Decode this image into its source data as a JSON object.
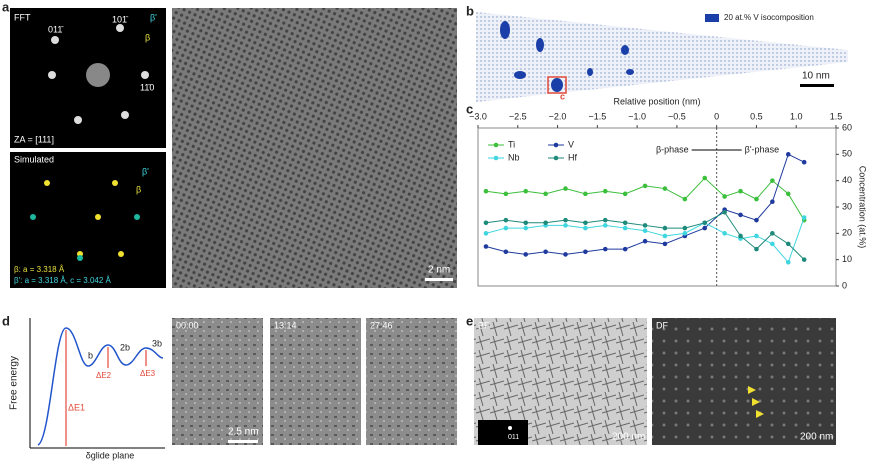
{
  "panel_labels": [
    "a",
    "b",
    "c",
    "d",
    "e"
  ],
  "panel_a": {
    "fft_label": "FFT",
    "spot_labels": [
      "101̄",
      "011̄",
      "11̄0"
    ],
    "beta": "β",
    "beta_prime": "β'",
    "zone_axis": "ZA = [111]",
    "simulated_label": "Simulated",
    "legend_beta": "β: a = 3.318 Å",
    "legend_beta_prime": "β': a = 3.318 Å, c = 3.042 Å",
    "scale_bar": "2 nm"
  },
  "panel_b": {
    "legend": "20 at.% V isocomposition",
    "scale_bar": "10 nm",
    "inset_label": "c"
  },
  "chart_data": {
    "type": "line",
    "xlabel": "Relative position (nm)",
    "ylabel": "Concentration (at.%)",
    "xlim": [
      -3.0,
      1.5
    ],
    "xticks": [
      {
        "value": -3.0,
        "label": "−3.0"
      },
      {
        "value": -2.5,
        "label": "−2.5"
      },
      {
        "value": -2.0,
        "label": "−2.0"
      },
      {
        "value": -1.5,
        "label": "−1.5"
      },
      {
        "value": -1.0,
        "label": "−1.0"
      },
      {
        "value": -0.5,
        "label": "−0.5"
      },
      0,
      0.5,
      {
        "value": 1.0,
        "label": "1.0"
      },
      1.5
    ],
    "ylim": [
      0,
      60
    ],
    "yticks": [
      0,
      10,
      20,
      30,
      40,
      50,
      60
    ],
    "x": [
      -2.9,
      -2.65,
      -2.4,
      -2.15,
      -1.9,
      -1.65,
      -1.4,
      -1.15,
      -0.9,
      -0.65,
      -0.4,
      -0.15,
      0.1,
      0.3,
      0.5,
      0.7,
      0.9,
      1.1
    ],
    "series": [
      {
        "name": "Ti",
        "color": "#3cbf3c",
        "values": [
          36,
          35,
          36,
          35,
          37,
          35,
          36,
          35,
          38,
          37,
          33,
          41,
          34,
          36,
          33,
          40,
          35,
          25
        ]
      },
      {
        "name": "V",
        "color": "#1f3a9e",
        "values": [
          15,
          13,
          12,
          13,
          12,
          13,
          14,
          14,
          17,
          16,
          19,
          22,
          29,
          27,
          25,
          32,
          50,
          47
        ]
      },
      {
        "name": "Nb",
        "color": "#3fd6e0",
        "values": [
          20,
          22,
          22,
          23,
          23,
          22,
          23,
          22,
          21,
          19,
          20,
          24,
          20,
          18,
          19,
          16,
          9,
          26
        ]
      },
      {
        "name": "Hf",
        "color": "#1e8a7a",
        "values": [
          24,
          25,
          24,
          24,
          25,
          24,
          25,
          24,
          23,
          22,
          22,
          24,
          28,
          19,
          14,
          20,
          16,
          10
        ]
      }
    ],
    "annotations": [
      "β-phase",
      "β'-phase"
    ]
  },
  "panel_d": {
    "ylabel": "Free energy",
    "xlabel": "δglide plane",
    "barriers": [
      "ΔE1",
      "ΔE2",
      "ΔE3"
    ],
    "distances": [
      "b",
      "2b",
      "3b"
    ],
    "timestamps": [
      "00:00",
      "13:14",
      "27:46"
    ],
    "scale_bar": "2.5 nm"
  },
  "panel_e": {
    "bf": "BF",
    "df": "DF",
    "diffraction_label": "011",
    "scale_bars": [
      "200 nm",
      "200 nm"
    ]
  }
}
